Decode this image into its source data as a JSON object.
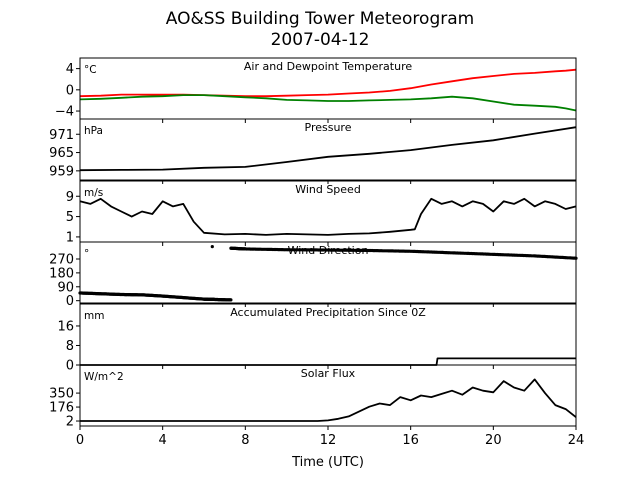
{
  "chart_data": {
    "type": "line",
    "title": "AO&SS Building Tower Meteorogram",
    "subtitle": "2007-04-12",
    "xlabel": "Time (UTC)",
    "xlim": [
      0,
      24
    ],
    "xticks": [
      0,
      4,
      8,
      12,
      16,
      20,
      24
    ],
    "panels": [
      {
        "title": "Air and Dewpoint Temperature",
        "unit": "°C",
        "ylim": [
          -5.5,
          6.0
        ],
        "yticks": [
          4,
          0,
          -4
        ],
        "series": [
          {
            "color": "#ff0000",
            "x": [
              0,
              1,
              2,
              3,
              4,
              5,
              6,
              7,
              8,
              9,
              10,
              11,
              12,
              13,
              14,
              15,
              16,
              17,
              18,
              19,
              20,
              21,
              22,
              23,
              23.5,
              24
            ],
            "values": [
              -1.2,
              -1.1,
              -0.9,
              -0.9,
              -0.9,
              -0.9,
              -1.0,
              -1.1,
              -1.2,
              -1.2,
              -1.1,
              -1.0,
              -0.9,
              -0.7,
              -0.5,
              -0.2,
              0.3,
              1.0,
              1.6,
              2.2,
              2.6,
              3.0,
              3.2,
              3.5,
              3.6,
              3.8
            ]
          },
          {
            "color": "#008000",
            "x": [
              0,
              1,
              2,
              3,
              4,
              5,
              6,
              7,
              8,
              9,
              10,
              11,
              12,
              13,
              14,
              15,
              16,
              17,
              18,
              19,
              20,
              21,
              22,
              23,
              23.5,
              24
            ],
            "values": [
              -1.8,
              -1.7,
              -1.5,
              -1.3,
              -1.2,
              -1.0,
              -1.0,
              -1.2,
              -1.4,
              -1.6,
              -1.9,
              -2.0,
              -2.1,
              -2.1,
              -2.0,
              -1.9,
              -1.8,
              -1.6,
              -1.3,
              -1.6,
              -2.2,
              -2.8,
              -3.0,
              -3.2,
              -3.5,
              -3.9
            ]
          }
        ]
      },
      {
        "title": "Pressure",
        "unit": "hPa",
        "ylim": [
          956,
          976
        ],
        "yticks": [
          971,
          965,
          959
        ],
        "series": [
          {
            "color": "#000000",
            "x": [
              0,
              2,
              4,
              6,
              8,
              10,
              12,
              14,
              16,
              18,
              20,
              22,
              24
            ],
            "values": [
              959.2,
              959.3,
              959.4,
              960.0,
              960.3,
              961.9,
              963.6,
              964.6,
              965.8,
              967.5,
              969.0,
              971.2,
              973.3
            ]
          }
        ]
      },
      {
        "title": "Wind Speed",
        "unit": "m/s",
        "ylim": [
          0,
          12
        ],
        "yticks": [
          9,
          5,
          1
        ],
        "series": [
          {
            "color": "#000000",
            "x": [
              0,
              0.5,
              1,
              1.5,
              2,
              2.5,
              3,
              3.5,
              4,
              4.5,
              5,
              5.5,
              6,
              7,
              8,
              9,
              10,
              11,
              12,
              13,
              14,
              15,
              16,
              16.2,
              16.5,
              17,
              17.5,
              18,
              18.5,
              19,
              19.5,
              20,
              20.5,
              21,
              21.5,
              22,
              22.5,
              23,
              23.5,
              24
            ],
            "values": [
              8,
              7.5,
              8.5,
              7,
              6,
              5,
              6,
              5.5,
              8,
              7,
              7.5,
              4,
              1.8,
              1.5,
              1.6,
              1.4,
              1.6,
              1.5,
              1.4,
              1.6,
              1.7,
              2.0,
              2.4,
              2.5,
              5.5,
              8.5,
              7.5,
              8.0,
              7.0,
              8.0,
              7.5,
              6.0,
              8.0,
              7.5,
              8.5,
              7.0,
              8.0,
              7.5,
              6.5,
              7.0
            ]
          }
        ]
      },
      {
        "title": "Wind Direction",
        "unit": "°",
        "ylim": [
          -15,
          380
        ],
        "yticks": [
          270,
          180,
          90,
          0
        ],
        "series": [
          {
            "color": "#000000",
            "mode": "dots",
            "x": [
              0,
              1,
              2,
              3,
              4,
              5,
              6,
              6.5,
              7.3
            ],
            "values": [
              50,
              45,
              40,
              38,
              30,
              20,
              10,
              8,
              5
            ]
          },
          {
            "color": "#000000",
            "mode": "dots",
            "x": [
              7.3,
              8,
              10,
              12,
              14,
              16,
              18,
              20,
              22,
              24
            ],
            "values": [
              340,
              335,
              330,
              328,
              325,
              320,
              310,
              300,
              290,
              275
            ]
          },
          {
            "color": "#000000",
            "mode": "dots",
            "x": [
              6.4
            ],
            "values": [
              350
            ]
          }
        ]
      },
      {
        "title": "Accumulated Precipitation Since 0Z",
        "unit": "mm",
        "ylim": [
          0,
          25
        ],
        "yticks": [
          16,
          8,
          0
        ],
        "series": [
          {
            "color": "#000000",
            "x": [
              0,
              17.25,
              17.3,
              24
            ],
            "values": [
              0,
              0,
              2.7,
              2.7
            ]
          }
        ]
      },
      {
        "title": "Solar Flux",
        "unit": "W/m^2",
        "ylim": [
          -60,
          700
        ],
        "yticks": [
          350,
          176,
          2
        ],
        "series": [
          {
            "color": "#000000",
            "x": [
              0,
              2,
              4,
              6,
              8,
              10,
              11.5,
              12,
              12.5,
              13,
              13.5,
              14,
              14.5,
              15,
              15.5,
              16,
              16.5,
              17,
              17.5,
              18,
              18.5,
              19,
              19.5,
              20,
              20.5,
              21,
              21.5,
              22,
              22.5,
              23,
              23.5,
              24
            ],
            "values": [
              2,
              2,
              2,
              2,
              2,
              2,
              2,
              10,
              30,
              60,
              120,
              180,
              220,
              200,
              300,
              260,
              320,
              300,
              340,
              380,
              330,
              420,
              380,
              360,
              500,
              420,
              380,
              520,
              350,
              200,
              150,
              50
            ]
          }
        ]
      }
    ]
  }
}
